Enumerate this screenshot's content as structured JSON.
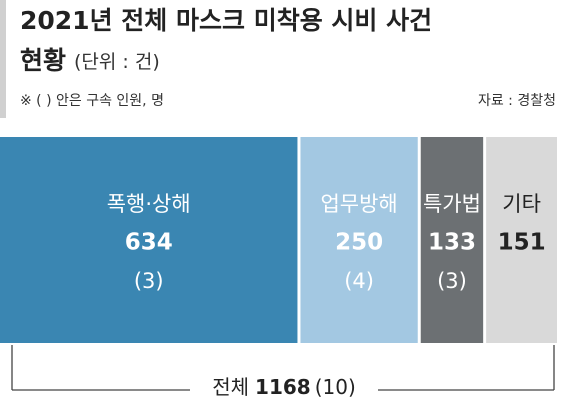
{
  "chart_data": {
    "type": "proportional-bar",
    "title": "2021년 전체 마스크 미착용 시비 사건",
    "subtitle": "현황",
    "unit": "(단위 : 건)",
    "note": "※ (   ) 안은 구속 인원, 명",
    "source": "자료 : 경찰청",
    "categories": [
      "폭행·상해",
      "업무방해",
      "특가법",
      "기타"
    ],
    "values": [
      634,
      250,
      133,
      151
    ],
    "arrest_labels": [
      "(3)",
      "(4)",
      "(3)",
      null
    ],
    "colors": [
      "#3a86b2",
      "#a3c8e2",
      "#6c7073",
      "#d9d9d9"
    ],
    "label_colors": [
      "#ffffff",
      "#ffffff",
      "#ffffff",
      "#222222"
    ],
    "total_label": "전체",
    "total": 1168,
    "total_arrest_label": "(10)"
  }
}
